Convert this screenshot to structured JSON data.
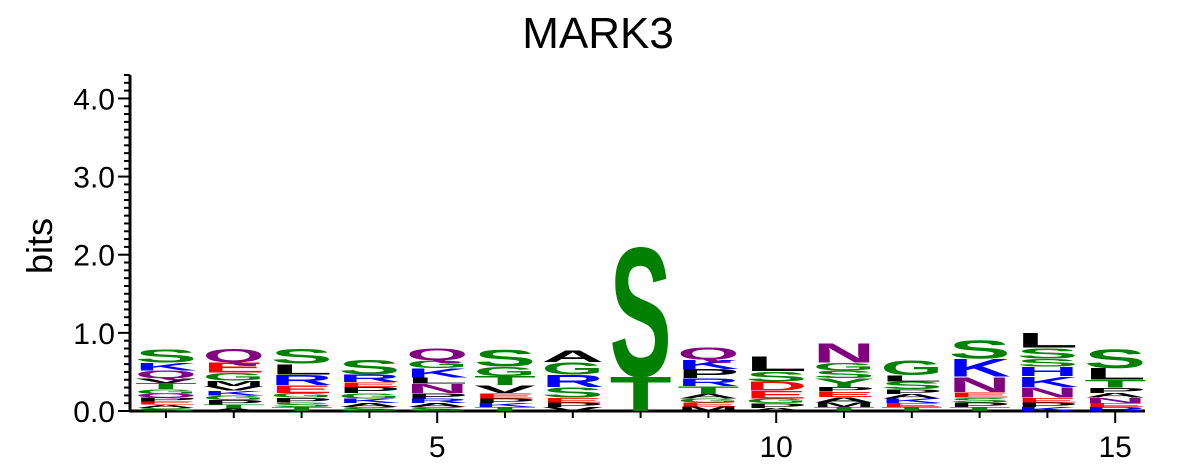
{
  "chart_data": {
    "type": "sequence-logo",
    "title": "MARK3",
    "ylabel": "bits",
    "xlabel": "",
    "ylim": [
      0,
      4.3
    ],
    "y_ticks": [
      "0.0",
      "1.0",
      "2.0",
      "3.0",
      "4.0"
    ],
    "x_ticks": [
      5,
      10,
      15
    ],
    "colors": {
      "S": "#008000",
      "T": "#008000",
      "G": "#008000",
      "Y": "#008000",
      "C": "#008000",
      "Q": "#800080",
      "N": "#800080",
      "K": "#0000FF",
      "R": "#0000FF",
      "H": "#0000FF",
      "D": "#FF0000",
      "E": "#FF0000",
      "A": "#000000",
      "V": "#000000",
      "L": "#000000",
      "I": "#000000",
      "P": "#000000",
      "M": "#000000",
      "F": "#000000",
      "W": "#000000"
    },
    "positions": [
      {
        "pos": 1,
        "letters": [
          [
            "S",
            0.04
          ],
          [
            "A",
            0.04
          ],
          [
            "E",
            0.04
          ],
          [
            "P",
            0.05
          ],
          [
            "Q",
            0.05
          ],
          [
            "G",
            0.06
          ],
          [
            "T",
            0.08
          ],
          [
            "V",
            0.06
          ],
          [
            "Q",
            0.1
          ],
          [
            "K",
            0.1
          ],
          [
            "S",
            0.17
          ]
        ]
      },
      {
        "pos": 2,
        "letters": [
          [
            "A",
            0.03
          ],
          [
            "T",
            0.05
          ],
          [
            "P",
            0.06
          ],
          [
            "G",
            0.06
          ],
          [
            "K",
            0.06
          ],
          [
            "V",
            0.06
          ],
          [
            "M",
            0.07
          ],
          [
            "G",
            0.1
          ],
          [
            "E",
            0.14
          ],
          [
            "Q",
            0.17
          ]
        ]
      },
      {
        "pos": 3,
        "letters": [
          [
            "T",
            0.05
          ],
          [
            "S",
            0.06
          ],
          [
            "P",
            0.06
          ],
          [
            "G",
            0.06
          ],
          [
            "E",
            0.1
          ],
          [
            "R",
            0.14
          ],
          [
            "L",
            0.14
          ],
          [
            "S",
            0.2
          ]
        ]
      },
      {
        "pos": 4,
        "letters": [
          [
            "S",
            0.05
          ],
          [
            "A",
            0.05
          ],
          [
            "K",
            0.06
          ],
          [
            "G",
            0.07
          ],
          [
            "P",
            0.08
          ],
          [
            "E",
            0.06
          ],
          [
            "R",
            0.1
          ],
          [
            "S",
            0.2
          ]
        ]
      },
      {
        "pos": 5,
        "letters": [
          [
            "S",
            0.05
          ],
          [
            "A",
            0.05
          ],
          [
            "R",
            0.06
          ],
          [
            "P",
            0.07
          ],
          [
            "N",
            0.12
          ],
          [
            "L",
            0.08
          ],
          [
            "K",
            0.12
          ],
          [
            "G",
            0.1
          ],
          [
            "Q",
            0.15
          ]
        ]
      },
      {
        "pos": 6,
        "letters": [
          [
            "T",
            0.05
          ],
          [
            "K",
            0.05
          ],
          [
            "P",
            0.06
          ],
          [
            "E",
            0.07
          ],
          [
            "V",
            0.1
          ],
          [
            "T",
            0.12
          ],
          [
            "G",
            0.12
          ],
          [
            "S",
            0.22
          ]
        ]
      },
      {
        "pos": 7,
        "letters": [
          [
            "V",
            0.05
          ],
          [
            "P",
            0.06
          ],
          [
            "E",
            0.06
          ],
          [
            "S",
            0.14
          ],
          [
            "R",
            0.16
          ],
          [
            "G",
            0.16
          ],
          [
            "A",
            0.15
          ]
        ]
      },
      {
        "pos": 8,
        "letters": [
          [
            "T",
            0.45
          ],
          [
            "S",
            1.7
          ]
        ]
      },
      {
        "pos": 9,
        "letters": [
          [
            "M",
            0.06
          ],
          [
            "E",
            0.05
          ],
          [
            "G",
            0.05
          ],
          [
            "A",
            0.06
          ],
          [
            "T",
            0.1
          ],
          [
            "R",
            0.1
          ],
          [
            "P",
            0.12
          ],
          [
            "K",
            0.12
          ],
          [
            "Q",
            0.16
          ]
        ]
      },
      {
        "pos": 10,
        "letters": [
          [
            "A",
            0.04
          ],
          [
            "P",
            0.06
          ],
          [
            "G",
            0.06
          ],
          [
            "E",
            0.1
          ],
          [
            "D",
            0.12
          ],
          [
            "S",
            0.13
          ],
          [
            "L",
            0.2
          ]
        ]
      },
      {
        "pos": 11,
        "letters": [
          [
            "T",
            0.05
          ],
          [
            "M",
            0.06
          ],
          [
            "A",
            0.07
          ],
          [
            "E",
            0.07
          ],
          [
            "P",
            0.06
          ],
          [
            "Y",
            0.11
          ],
          [
            "S",
            0.1
          ],
          [
            "G",
            0.1
          ],
          [
            "N",
            0.26
          ]
        ]
      },
      {
        "pos": 12,
        "letters": [
          [
            "T",
            0.05
          ],
          [
            "E",
            0.05
          ],
          [
            "K",
            0.06
          ],
          [
            "A",
            0.06
          ],
          [
            "P",
            0.06
          ],
          [
            "S",
            0.1
          ],
          [
            "L",
            0.08
          ],
          [
            "G",
            0.2
          ]
        ]
      },
      {
        "pos": 13,
        "letters": [
          [
            "T",
            0.05
          ],
          [
            "P",
            0.06
          ],
          [
            "S",
            0.06
          ],
          [
            "E",
            0.07
          ],
          [
            "N",
            0.2
          ],
          [
            "K",
            0.23
          ],
          [
            "S",
            0.24
          ]
        ]
      },
      {
        "pos": 14,
        "letters": [
          [
            "K",
            0.05
          ],
          [
            "P",
            0.06
          ],
          [
            "E",
            0.06
          ],
          [
            "N",
            0.14
          ],
          [
            "K",
            0.14
          ],
          [
            "H",
            0.12
          ],
          [
            "S",
            0.1
          ],
          [
            "S",
            0.14
          ],
          [
            "L",
            0.2
          ]
        ]
      },
      {
        "pos": 15,
        "letters": [
          [
            "R",
            0.05
          ],
          [
            "E",
            0.05
          ],
          [
            "N",
            0.07
          ],
          [
            "A",
            0.06
          ],
          [
            "P",
            0.07
          ],
          [
            "T",
            0.1
          ],
          [
            "L",
            0.15
          ],
          [
            "S",
            0.25
          ]
        ]
      }
    ]
  }
}
